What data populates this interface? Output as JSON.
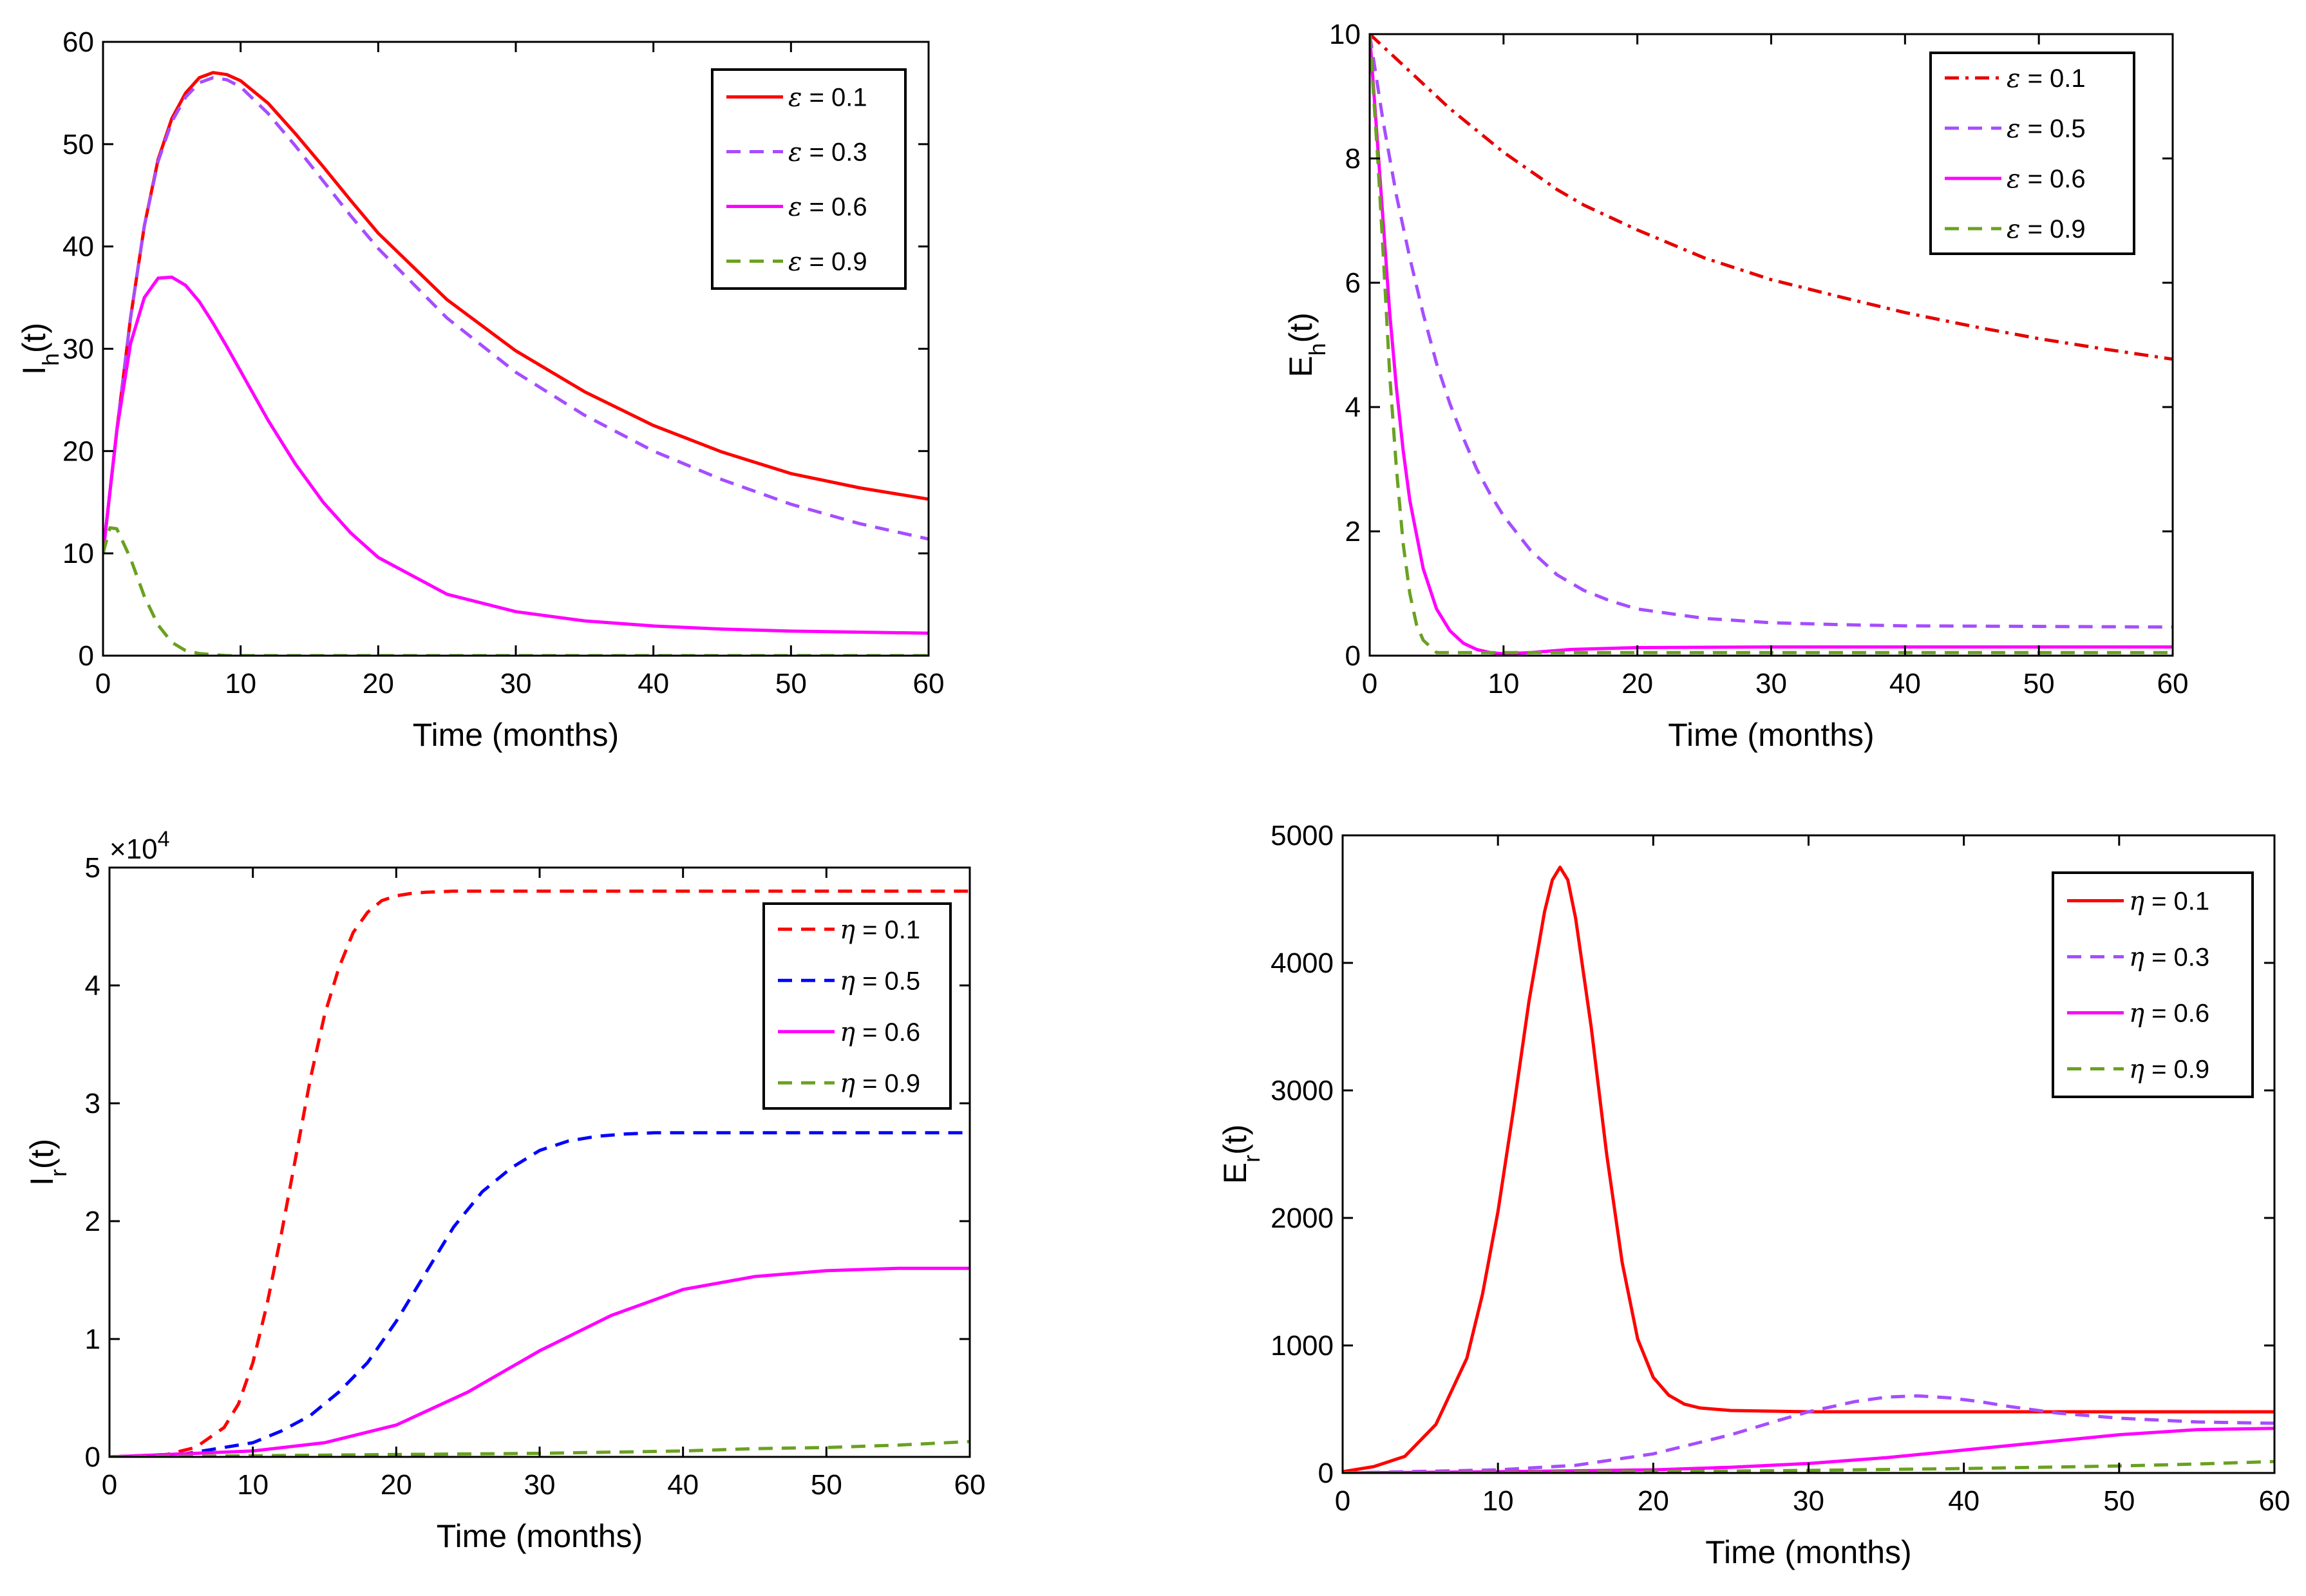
{
  "chart_data": [
    {
      "id": "ih",
      "type": "line",
      "xlabel": "Time (months)",
      "ylabel": {
        "main": "I",
        "sub": "h",
        "suffix": "(t)"
      },
      "xlim": [
        0,
        60
      ],
      "ylim": [
        0,
        60
      ],
      "xticks": [
        0,
        10,
        20,
        30,
        40,
        50,
        60
      ],
      "yticks": [
        0,
        10,
        20,
        30,
        40,
        50,
        60
      ],
      "legend_position": "top-right",
      "legend_symbol": "ε",
      "series": [
        {
          "name": "ε = 0.1",
          "param": "0.1",
          "color": "#ff0000",
          "dash": "solid",
          "x": [
            0,
            1,
            2,
            3,
            4,
            5,
            6,
            7,
            8,
            9,
            10,
            12,
            14,
            16,
            18,
            20,
            25,
            30,
            35,
            40,
            45,
            50,
            55,
            60
          ],
          "y": [
            10,
            22,
            33,
            42,
            48.5,
            52.5,
            55,
            56.5,
            57,
            56.8,
            56.2,
            54,
            51,
            47.8,
            44.5,
            41.3,
            34.8,
            29.8,
            25.8,
            22.5,
            19.9,
            17.8,
            16.4,
            15.3
          ]
        },
        {
          "name": "ε = 0.3",
          "param": "0.3",
          "color": "#a64dff",
          "dash": "dashed",
          "x": [
            0,
            1,
            2,
            3,
            4,
            5,
            6,
            7,
            8,
            9,
            10,
            12,
            14,
            16,
            18,
            20,
            25,
            30,
            35,
            40,
            45,
            50,
            55,
            60
          ],
          "y": [
            10,
            22,
            33,
            42,
            48.3,
            52.2,
            54.6,
            56,
            56.5,
            56.3,
            55.6,
            53,
            49.8,
            46.4,
            43,
            39.8,
            33,
            27.7,
            23.5,
            20,
            17.2,
            14.8,
            12.9,
            11.4
          ]
        },
        {
          "name": "ε = 0.6",
          "param": "0.6",
          "color": "#ff00ff",
          "dash": "solid",
          "x": [
            0,
            1,
            2,
            3,
            4,
            5,
            6,
            7,
            8,
            9,
            10,
            12,
            14,
            16,
            18,
            20,
            25,
            30,
            35,
            40,
            45,
            50,
            55,
            60
          ],
          "y": [
            10,
            22,
            30.5,
            35,
            36.9,
            37,
            36.2,
            34.6,
            32.5,
            30.2,
            27.8,
            23,
            18.7,
            15,
            12,
            9.6,
            6,
            4.3,
            3.4,
            2.9,
            2.6,
            2.4,
            2.3,
            2.2
          ]
        },
        {
          "name": "ε = 0.9",
          "param": "0.9",
          "color": "#6aa121",
          "dash": "dashed",
          "x": [
            0,
            0.5,
            1,
            2,
            3,
            4,
            5,
            6,
            7,
            8,
            9,
            10,
            20,
            30,
            40,
            50,
            60
          ],
          "y": [
            10,
            12.5,
            12.4,
            9.5,
            5.8,
            3,
            1.3,
            0.5,
            0.2,
            0.1,
            0,
            0,
            0,
            0,
            0,
            0,
            0
          ]
        }
      ]
    },
    {
      "id": "eh",
      "type": "line",
      "xlabel": "Time (months)",
      "ylabel": {
        "main": "E",
        "sub": "h",
        "suffix": "(t)"
      },
      "xlim": [
        0,
        60
      ],
      "ylim": [
        0,
        10
      ],
      "xticks": [
        0,
        10,
        20,
        30,
        40,
        50,
        60
      ],
      "yticks": [
        0,
        2,
        4,
        6,
        8,
        10
      ],
      "legend_position": "top-right",
      "legend_symbol": "ε",
      "series": [
        {
          "name": "ε = 0.1",
          "param": "0.1",
          "color": "#e60000",
          "dash": "dashdot",
          "x": [
            0,
            2,
            4,
            6,
            8,
            10,
            12,
            14,
            16,
            18,
            20,
            25,
            30,
            35,
            40,
            45,
            50,
            55,
            60
          ],
          "y": [
            10,
            9.6,
            9.2,
            8.8,
            8.45,
            8.1,
            7.8,
            7.5,
            7.25,
            7.05,
            6.85,
            6.4,
            6.05,
            5.78,
            5.52,
            5.3,
            5.1,
            4.93,
            4.77
          ]
        },
        {
          "name": "ε = 0.5",
          "param": "0.5",
          "color": "#a64dff",
          "dash": "dashed",
          "x": [
            0,
            1,
            2,
            3,
            4,
            5,
            6,
            7,
            8,
            9,
            10,
            12,
            14,
            16,
            18,
            20,
            25,
            30,
            35,
            40,
            50,
            60
          ],
          "y": [
            10,
            8.6,
            7.4,
            6.4,
            5.5,
            4.7,
            4.05,
            3.5,
            3.0,
            2.6,
            2.25,
            1.7,
            1.3,
            1.05,
            0.88,
            0.75,
            0.6,
            0.53,
            0.5,
            0.48,
            0.47,
            0.46
          ]
        },
        {
          "name": "ε = 0.6",
          "param": "0.6",
          "color": "#ff00ff",
          "dash": "solid",
          "x": [
            0,
            0.5,
            1,
            1.5,
            2,
            2.5,
            3,
            4,
            5,
            6,
            7,
            8,
            9,
            10,
            12,
            15,
            20,
            30,
            40,
            50,
            60
          ],
          "y": [
            10,
            8.5,
            7.0,
            5.5,
            4.3,
            3.3,
            2.5,
            1.4,
            0.75,
            0.4,
            0.2,
            0.1,
            0.05,
            0.03,
            0.05,
            0.1,
            0.13,
            0.14,
            0.14,
            0.14,
            0.14
          ]
        },
        {
          "name": "ε = 0.9",
          "param": "0.9",
          "color": "#6aa121",
          "dash": "dashed",
          "x": [
            0,
            0.3,
            0.6,
            1,
            1.5,
            2,
            2.5,
            3,
            3.5,
            4,
            5,
            10,
            20,
            30,
            40,
            50,
            60
          ],
          "y": [
            10,
            9.0,
            8.0,
            6.5,
            4.5,
            3.0,
            1.8,
            1.0,
            0.5,
            0.25,
            0.05,
            0.05,
            0.05,
            0.05,
            0.05,
            0.05,
            0.05
          ]
        }
      ]
    },
    {
      "id": "ir",
      "type": "line",
      "xlabel": "Time (months)",
      "ylabel": {
        "main": "I",
        "sub": "r",
        "suffix": "(t)"
      },
      "multiplier": {
        "base": "×10",
        "exp": "4"
      },
      "xlim": [
        0,
        60
      ],
      "ylim": [
        0,
        5
      ],
      "xticks": [
        0,
        10,
        20,
        30,
        40,
        50,
        60
      ],
      "yticks": [
        0,
        1,
        2,
        3,
        4,
        5
      ],
      "legend_position": "top-right",
      "legend_symbol": "η",
      "series": [
        {
          "name": "η = 0.1",
          "param": "0.1",
          "color": "#ff0000",
          "dash": "dashed",
          "x": [
            0,
            4,
            6,
            8,
            9,
            10,
            11,
            12,
            13,
            14,
            15,
            16,
            17,
            18,
            19,
            20,
            21,
            22,
            24,
            26,
            30,
            40,
            50,
            60
          ],
          "y": [
            0,
            0.02,
            0.08,
            0.25,
            0.45,
            0.8,
            1.3,
            1.9,
            2.55,
            3.2,
            3.75,
            4.15,
            4.45,
            4.62,
            4.72,
            4.76,
            4.78,
            4.79,
            4.8,
            4.8,
            4.8,
            4.8,
            4.8,
            4.8
          ]
        },
        {
          "name": "η = 0.5",
          "param": "0.5",
          "color": "#0000ff",
          "dash": "dashed",
          "x": [
            0,
            5,
            10,
            12,
            14,
            16,
            18,
            20,
            22,
            24,
            26,
            28,
            30,
            32,
            34,
            36,
            38,
            40,
            45,
            50,
            60
          ],
          "y": [
            0,
            0.02,
            0.12,
            0.22,
            0.35,
            0.55,
            0.8,
            1.15,
            1.55,
            1.95,
            2.25,
            2.45,
            2.6,
            2.68,
            2.72,
            2.74,
            2.75,
            2.75,
            2.75,
            2.75,
            2.75
          ]
        },
        {
          "name": "η = 0.6",
          "param": "0.6",
          "color": "#ff00ff",
          "dash": "solid",
          "x": [
            0,
            10,
            15,
            20,
            25,
            30,
            35,
            40,
            45,
            50,
            55,
            60
          ],
          "y": [
            0,
            0.05,
            0.12,
            0.27,
            0.55,
            0.9,
            1.2,
            1.42,
            1.53,
            1.58,
            1.6,
            1.6
          ]
        },
        {
          "name": "η = 0.9",
          "param": "0.9",
          "color": "#6aa121",
          "dash": "dashed",
          "x": [
            0,
            10,
            20,
            30,
            40,
            45,
            50,
            55,
            60
          ],
          "y": [
            0,
            0.01,
            0.02,
            0.03,
            0.05,
            0.07,
            0.08,
            0.1,
            0.13
          ]
        }
      ]
    },
    {
      "id": "er",
      "type": "line",
      "xlabel": "Time (months)",
      "ylabel": {
        "main": "E",
        "sub": "r",
        "suffix": "(t)"
      },
      "xlim": [
        0,
        60
      ],
      "ylim": [
        0,
        5000
      ],
      "xticks": [
        0,
        10,
        20,
        30,
        40,
        50,
        60
      ],
      "yticks": [
        0,
        1000,
        2000,
        3000,
        4000,
        5000
      ],
      "legend_position": "top-right",
      "legend_symbol": "η",
      "series": [
        {
          "name": "η = 0.1",
          "param": "0.1",
          "color": "#ff0000",
          "dash": "solid",
          "x": [
            0,
            2,
            4,
            6,
            8,
            9,
            10,
            11,
            12,
            13,
            13.5,
            14,
            14.5,
            15,
            16,
            17,
            18,
            19,
            20,
            21,
            22,
            23,
            25,
            30,
            40,
            50,
            60
          ],
          "y": [
            10,
            50,
            130,
            380,
            900,
            1400,
            2050,
            2850,
            3700,
            4400,
            4650,
            4750,
            4650,
            4350,
            3500,
            2500,
            1650,
            1050,
            750,
            610,
            540,
            510,
            490,
            480,
            480,
            480,
            480
          ]
        },
        {
          "name": "η = 0.3",
          "param": "0.3",
          "color": "#a64dff",
          "dash": "dashed",
          "x": [
            0,
            10,
            15,
            20,
            25,
            28,
            30,
            33,
            35,
            37,
            39,
            41,
            43,
            46,
            50,
            55,
            60
          ],
          "y": [
            0,
            25,
            60,
            150,
            300,
            410,
            480,
            560,
            595,
            605,
            590,
            560,
            520,
            470,
            430,
            400,
            390
          ]
        },
        {
          "name": "η = 0.6",
          "param": "0.6",
          "color": "#ff00ff",
          "dash": "solid",
          "x": [
            0,
            10,
            20,
            25,
            30,
            35,
            40,
            45,
            50,
            55,
            60
          ],
          "y": [
            0,
            10,
            25,
            45,
            75,
            120,
            180,
            240,
            300,
            340,
            350
          ]
        },
        {
          "name": "η = 0.9",
          "param": "0.9",
          "color": "#6aa121",
          "dash": "dashed",
          "x": [
            0,
            10,
            20,
            30,
            40,
            50,
            55,
            60
          ],
          "y": [
            0,
            5,
            10,
            20,
            35,
            55,
            70,
            90
          ]
        }
      ]
    }
  ]
}
